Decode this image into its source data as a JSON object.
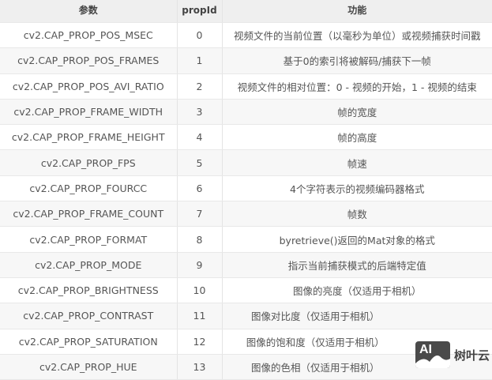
{
  "table": {
    "headers": [
      "参数",
      "propId",
      "功能"
    ],
    "rows": [
      [
        "cv2.CAP_PROP_POS_MSEC",
        "0",
        "视频文件的当前位置（以毫秒为单位）或视频捕获时间戳"
      ],
      [
        "cv2.CAP_PROP_POS_FRAMES",
        "1",
        "基于0的索引将被解码/捕获下一帧"
      ],
      [
        "cv2.CAP_PROP_POS_AVI_RATIO",
        "2",
        "视频文件的相对位置：0 - 视频的开始，1 - 视频的结束"
      ],
      [
        "cv2.CAP_PROP_FRAME_WIDTH",
        "3",
        "帧的宽度"
      ],
      [
        "cv2.CAP_PROP_FRAME_HEIGHT",
        "4",
        "帧的高度"
      ],
      [
        "cv2.CAP_PROP_FPS",
        "5",
        "帧速"
      ],
      [
        "cv2.CAP_PROP_FOURCC",
        "6",
        "4个字符表示的视频编码器格式"
      ],
      [
        "cv2.CAP_PROP_FRAME_COUNT",
        "7",
        "帧数"
      ],
      [
        "cv2.CAP_PROP_FORMAT",
        "8",
        "byretrieve()返回的Mat对象的格式"
      ],
      [
        "cv2.CAP_PROP_MODE",
        "9",
        "指示当前捕获模式的后端特定值"
      ],
      [
        "cv2.CAP_PROP_BRIGHTNESS",
        "10",
        "图像的亮度（仅适用于相机）"
      ],
      [
        "cv2.CAP_PROP_CONTRAST",
        "11",
        "图像对比度（仅适用于相机）"
      ],
      [
        "cv2.CAP_PROP_SATURATION",
        "12",
        "图像的饱和度（仅适用于相机）"
      ],
      [
        "cv2.CAP_PROP_HUE",
        "13",
        "图像的色相（仅适用于相机）"
      ]
    ]
  },
  "watermark": {
    "logo_text": "AI",
    "brand": "树叶云"
  }
}
